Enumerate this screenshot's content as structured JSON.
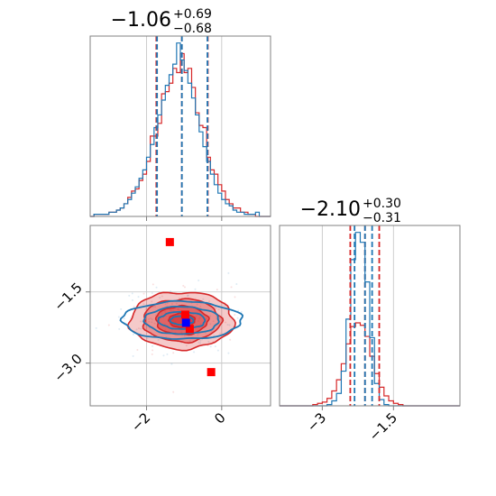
{
  "chart_data": [
    {
      "type": "histogram",
      "panel": "top-left",
      "parameter_index": 0,
      "title": {
        "median": "−1.06",
        "upper": "+0.69",
        "lower": "−0.68"
      },
      "xlim": [
        -3.5,
        1.3
      ],
      "yticks_shown": false,
      "xticks": [
        -2,
        0
      ],
      "quantile_lines": {
        "red": [
          -1.74,
          -1.06,
          -0.37
        ],
        "blue": [
          -1.72,
          -1.06,
          -0.38
        ]
      },
      "series": [
        {
          "name": "red",
          "color": "#d62728",
          "edges_start": -3.5,
          "bin_width": 0.1,
          "counts": [
            0,
            1,
            1,
            1,
            1,
            2,
            2,
            3,
            4,
            6,
            9,
            12,
            13,
            17,
            20,
            26,
            38,
            38,
            44,
            58,
            59,
            63,
            70,
            68,
            77,
            68,
            70,
            61,
            49,
            43,
            42,
            28,
            22,
            20,
            15,
            12,
            8,
            6,
            4,
            4,
            2,
            2,
            1,
            1,
            0,
            0,
            0,
            0
          ]
        },
        {
          "name": "blue",
          "color": "#1f77b4",
          "edges_start": -3.5,
          "bin_width": 0.1,
          "counts": [
            0,
            1,
            1,
            1,
            1,
            2,
            2,
            3,
            4,
            6,
            8,
            11,
            14,
            18,
            22,
            28,
            34,
            42,
            48,
            55,
            62,
            67,
            72,
            82,
            74,
            69,
            63,
            56,
            48,
            40,
            33,
            26,
            20,
            15,
            11,
            8,
            6,
            5,
            3,
            2,
            2,
            1,
            1,
            1,
            2,
            0,
            0,
            0
          ]
        }
      ]
    },
    {
      "type": "contour",
      "panel": "bottom-left",
      "xlim": [
        -3.5,
        1.3
      ],
      "ylim": [
        -3.9,
        -0.1
      ],
      "xticks": [
        -2,
        0
      ],
      "yticks": [
        -1.5,
        -3.0
      ],
      "series": [
        {
          "name": "red",
          "color": "#d62728",
          "center": [
            -1.06,
            -2.1
          ],
          "sigma": [
            0.69,
            0.3
          ],
          "filled": true
        },
        {
          "name": "blue",
          "color": "#1f77b4",
          "center": [
            -1.06,
            -2.1
          ],
          "sigma": [
            0.69,
            0.18
          ],
          "filled": false
        }
      ],
      "markers": [
        {
          "color": "#ff0000",
          "x": -1.38,
          "y": -0.45
        },
        {
          "color": "#ff0000",
          "x": -0.97,
          "y": -1.98
        },
        {
          "color": "#ff0000",
          "x": -0.85,
          "y": -2.28
        },
        {
          "color": "#ff0000",
          "x": -0.28,
          "y": -3.19
        },
        {
          "color": "#0000ff",
          "x": -0.95,
          "y": -2.15
        }
      ]
    },
    {
      "type": "histogram",
      "panel": "bottom-right",
      "parameter_index": 1,
      "title": {
        "median": "−2.10",
        "upper": "+0.30",
        "lower": "−0.31"
      },
      "xlim": [
        -3.9,
        -0.1
      ],
      "xticks": [
        -3.0,
        -1.5
      ],
      "quantile_lines": {
        "red": [
          -2.41,
          -2.1,
          -1.8
        ],
        "blue": [
          -2.32,
          -2.1,
          -1.95
        ]
      },
      "series": [
        {
          "name": "red",
          "color": "#d62728",
          "edges_start": -3.9,
          "bin_width": 0.1,
          "counts": [
            0,
            0,
            0,
            0,
            0,
            0,
            0,
            1,
            2,
            3,
            6,
            12,
            21,
            34,
            50,
            64,
            67,
            65,
            56,
            40,
            26,
            15,
            8,
            4,
            2,
            1,
            0,
            0,
            0,
            0,
            0,
            0,
            0,
            0,
            0,
            0,
            0,
            0
          ]
        },
        {
          "name": "blue",
          "color": "#1f77b4",
          "edges_start": -3.9,
          "bin_width": 0.1,
          "counts": [
            0,
            0,
            0,
            0,
            0,
            0,
            0,
            0,
            0,
            0,
            1,
            4,
            10,
            28,
            70,
            118,
            140,
            132,
            100,
            55,
            18,
            5,
            1,
            0,
            0,
            0,
            0,
            0,
            0,
            0,
            0,
            0,
            0,
            0,
            0,
            0,
            0,
            0
          ]
        }
      ]
    }
  ]
}
